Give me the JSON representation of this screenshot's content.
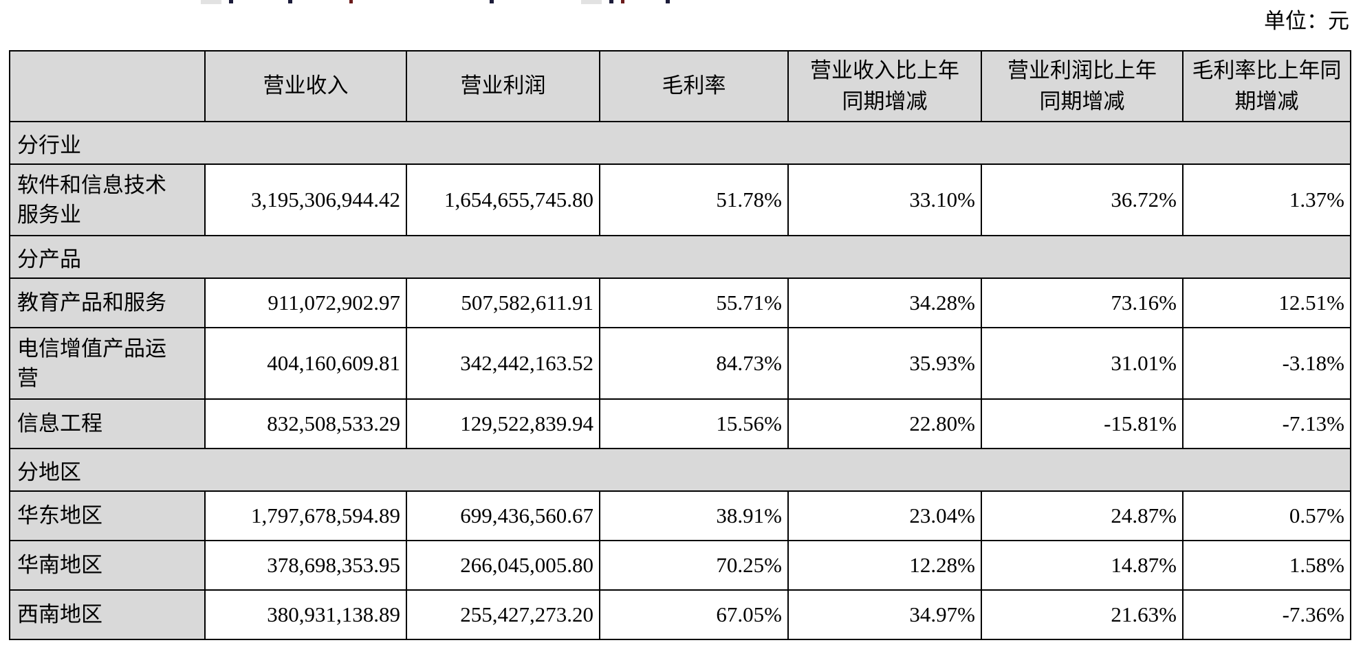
{
  "page": {
    "unit_label": "单位：元"
  },
  "table": {
    "columns": [
      "",
      "营业收入",
      "营业利润",
      "毛利率",
      "营业收入比上年\n同期增减",
      "营业利润比上年\n同期增减",
      "毛利率比上年同\n期增减"
    ],
    "rows": [
      {
        "type": "section",
        "label": "分行业"
      },
      {
        "type": "data",
        "label": "软件和信息技术\n服务业",
        "values": [
          "3,195,306,944.42",
          "1,654,655,745.80",
          "51.78%",
          "33.10%",
          "36.72%",
          "1.37%"
        ]
      },
      {
        "type": "section",
        "label": "分产品"
      },
      {
        "type": "data",
        "label": "教育产品和服务",
        "values": [
          "911,072,902.97",
          "507,582,611.91",
          "55.71%",
          "34.28%",
          "73.16%",
          "12.51%"
        ]
      },
      {
        "type": "data",
        "label": "电信增值产品运\n营",
        "values": [
          "404,160,609.81",
          "342,442,163.52",
          "84.73%",
          "35.93%",
          "31.01%",
          "-3.18%"
        ]
      },
      {
        "type": "data",
        "label": "信息工程",
        "values": [
          "832,508,533.29",
          "129,522,839.94",
          "15.56%",
          "22.80%",
          "-15.81%",
          "-7.13%"
        ]
      },
      {
        "type": "section",
        "label": "分地区"
      },
      {
        "type": "data",
        "label": "华东地区",
        "values": [
          "1,797,678,594.89",
          "699,436,560.67",
          "38.91%",
          "23.04%",
          "24.87%",
          "0.57%"
        ]
      },
      {
        "type": "data",
        "label": "华南地区",
        "values": [
          "378,698,353.95",
          "266,045,005.80",
          "70.25%",
          "12.28%",
          "14.87%",
          "1.58%"
        ]
      },
      {
        "type": "data",
        "label": "西南地区",
        "values": [
          "380,931,138.89",
          "255,427,273.20",
          "67.05%",
          "34.97%",
          "21.63%",
          "-7.36%"
        ]
      }
    ],
    "colors": {
      "header_bg": "#d9d9d9",
      "section_bg": "#d9d9d9",
      "label_bg": "#d9d9d9",
      "cell_bg": "#ffffff",
      "border": "#000000"
    }
  }
}
